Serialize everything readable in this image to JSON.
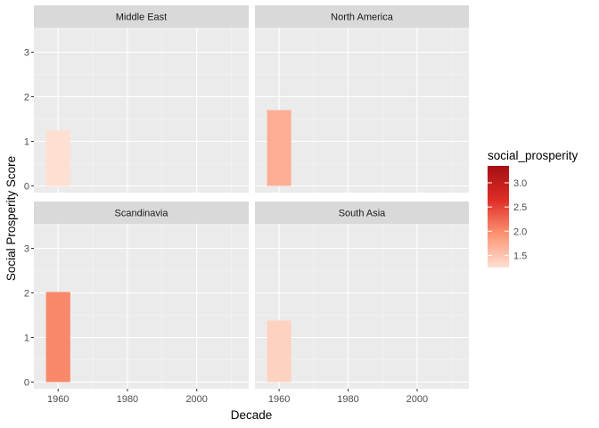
{
  "chart_data": {
    "type": "bar",
    "xlabel": "Decade",
    "ylabel": "Social Prosperity Score",
    "xlim": [
      1953,
      2015
    ],
    "ylim": [
      -0.15,
      3.55
    ],
    "x_ticks": [
      1960,
      1980,
      2000
    ],
    "y_ticks": [
      0,
      1,
      2,
      3
    ],
    "grid": true,
    "facets": [
      {
        "name": "Middle East",
        "bars": [
          {
            "x": 1960,
            "value": 1.25
          }
        ]
      },
      {
        "name": "North America",
        "bars": [
          {
            "x": 1960,
            "value": 1.7
          }
        ]
      },
      {
        "name": "Scandinavia",
        "bars": [
          {
            "x": 1960,
            "value": 2.02
          }
        ]
      },
      {
        "name": "South Asia",
        "bars": [
          {
            "x": 1960,
            "value": 1.38
          }
        ]
      }
    ],
    "bar_width_years": 7,
    "legend": {
      "title": "social_prosperity",
      "placement": "right",
      "min": 1.25,
      "max": 3.35,
      "ticks": [
        "1.5",
        "2.0",
        "2.5",
        "3.0"
      ],
      "tick_values": [
        1.5,
        2.0,
        2.5,
        3.0
      ],
      "colors": [
        "#fee0d2",
        "#fc9272",
        "#de2d26",
        "#a50f15"
      ]
    }
  }
}
